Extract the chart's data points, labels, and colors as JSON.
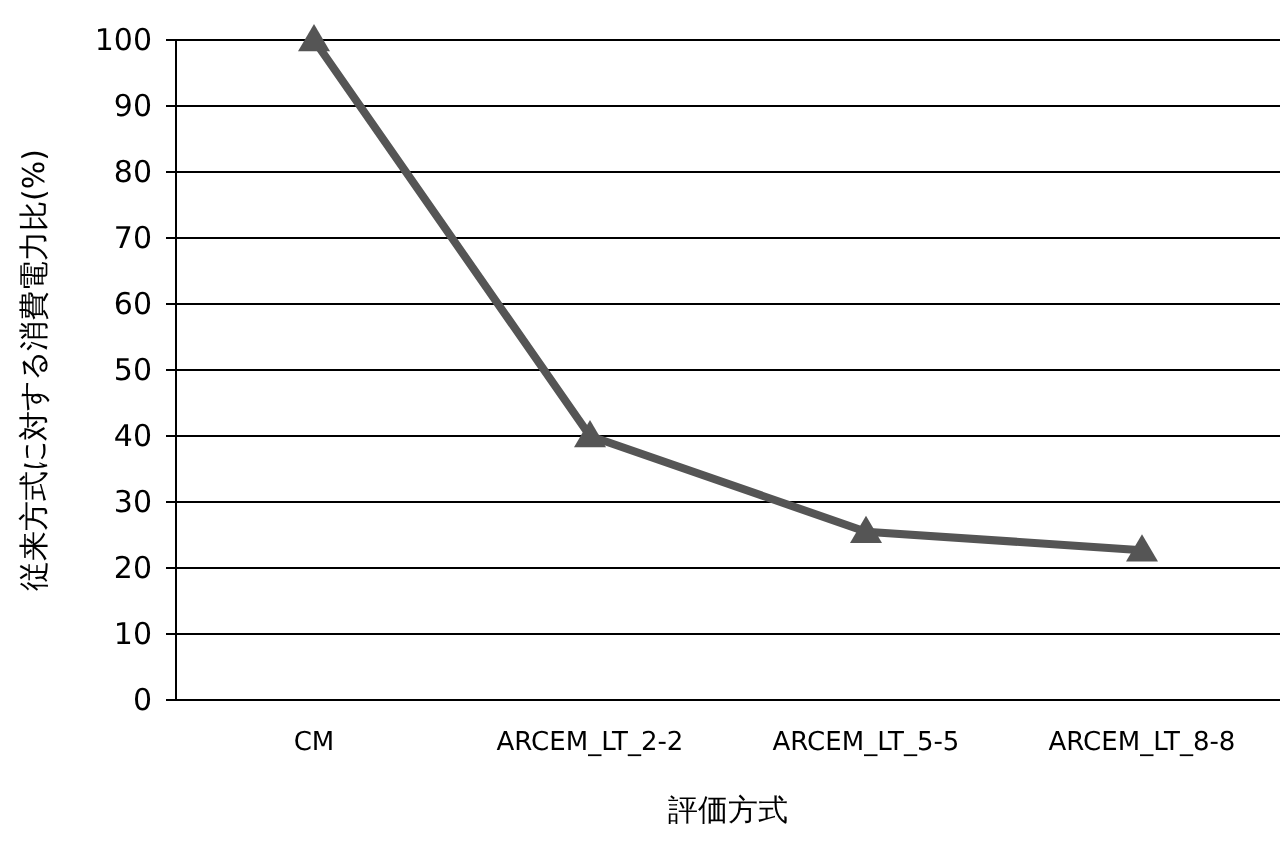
{
  "chart_data": {
    "type": "line",
    "xlabel": "評価方式",
    "ylabel": "従来方式に対する消費電力比(%)",
    "categories": [
      "CM",
      "ARCEM_LT_2-2",
      "ARCEM_LT_5-5",
      "ARCEM_LT_8-8"
    ],
    "series": [
      {
        "color": "#555555",
        "values": [
          100,
          40,
          25.5,
          22.7
        ]
      }
    ],
    "ylim": [
      0,
      100
    ],
    "yticks": [
      0,
      10,
      20,
      30,
      40,
      50,
      60,
      70,
      80,
      90,
      100
    ],
    "grid": "y",
    "marker": "triangle",
    "line_style": "solid"
  }
}
